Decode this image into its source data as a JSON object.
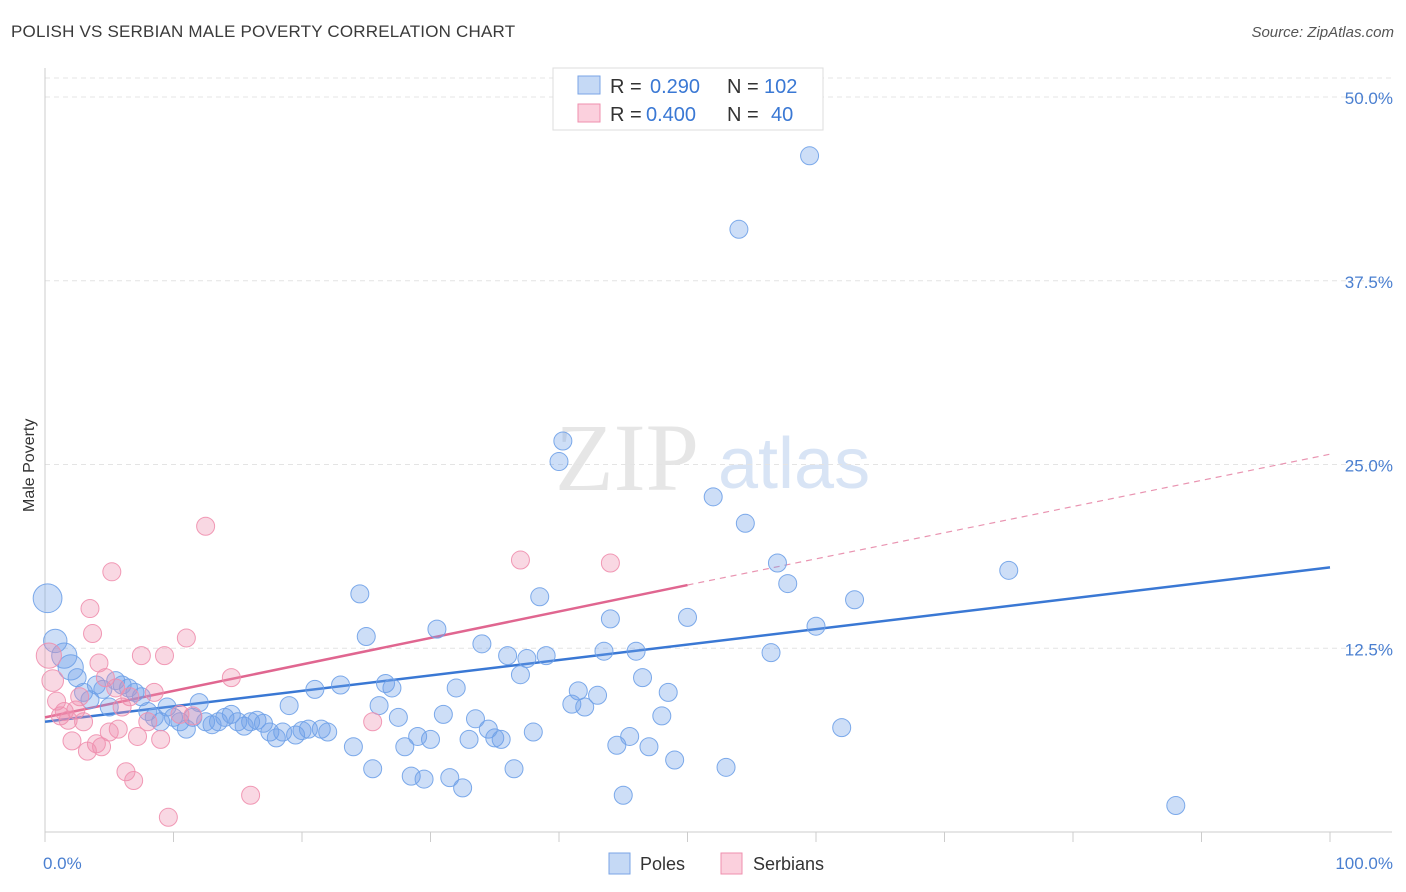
{
  "header": {
    "title": "POLISH VS SERBIAN MALE POVERTY CORRELATION CHART",
    "source": "Source: ZipAtlas.com"
  },
  "watermark": {
    "zip": "ZIP",
    "atlas": "atlas"
  },
  "legend": {
    "r_label": "R =",
    "n_label": "N =",
    "rows": [
      {
        "name": "Poles",
        "r": "0.290",
        "n": "102",
        "color": "#6fa1e8"
      },
      {
        "name": "Serbians",
        "r": "0.400",
        "n": "40",
        "color": "#ef8fae"
      }
    ]
  },
  "chart_data": {
    "type": "scatter",
    "title": "POLISH VS SERBIAN MALE POVERTY CORRELATION CHART",
    "xlabel": "",
    "ylabel": "Male Poverty",
    "xlim": [
      0,
      100
    ],
    "ylim": [
      0,
      50
    ],
    "x_ticks": [
      "0.0%",
      "100.0%"
    ],
    "y_ticks": [
      "12.5%",
      "25.0%",
      "37.5%",
      "50.0%"
    ],
    "y_tick_values": [
      12.5,
      25.0,
      37.5,
      50.0
    ],
    "grid": true,
    "legend_position": "top-center",
    "series": [
      {
        "name": "Poles",
        "color": "#6fa1e8",
        "stroke": "#3a78d4",
        "trend": {
          "x": [
            0,
            100
          ],
          "y": [
            7.5,
            18.0
          ],
          "style": "solid"
        },
        "points": [
          [
            0.2,
            15.9,
            1.6
          ],
          [
            0.8,
            13.0,
            1.3
          ],
          [
            1.5,
            12.0,
            1.4
          ],
          [
            2.0,
            11.2,
            1.4
          ],
          [
            2.5,
            10.5,
            1.0
          ],
          [
            3.0,
            9.5,
            1.0
          ],
          [
            3.5,
            9.0,
            1.0
          ],
          [
            4.0,
            10.0,
            1.0
          ],
          [
            4.5,
            9.7,
            1.0
          ],
          [
            5.0,
            8.5,
            1.0
          ],
          [
            5.5,
            10.3,
            1.0
          ],
          [
            6.0,
            10.0,
            1.0
          ],
          [
            6.5,
            9.8,
            1.0
          ],
          [
            7.0,
            9.5,
            1.0
          ],
          [
            7.5,
            9.2,
            1.0
          ],
          [
            8.0,
            8.2,
            1.0
          ],
          [
            8.5,
            7.8,
            1.0
          ],
          [
            9.0,
            7.5,
            1.0
          ],
          [
            9.5,
            8.5,
            1.0
          ],
          [
            10.0,
            7.8,
            1.0
          ],
          [
            10.5,
            7.5,
            1.0
          ],
          [
            11.0,
            7.0,
            1.0
          ],
          [
            11.5,
            7.8,
            1.0
          ],
          [
            12.0,
            8.8,
            1.0
          ],
          [
            12.5,
            7.5,
            1.0
          ],
          [
            13.0,
            7.3,
            1.0
          ],
          [
            13.5,
            7.5,
            1.0
          ],
          [
            14.0,
            7.8,
            1.0
          ],
          [
            14.5,
            8.0,
            1.0
          ],
          [
            15.0,
            7.5,
            1.0
          ],
          [
            15.5,
            7.2,
            1.0
          ],
          [
            16.0,
            7.5,
            1.0
          ],
          [
            16.5,
            7.6,
            1.0
          ],
          [
            17.0,
            7.4,
            1.0
          ],
          [
            17.5,
            6.8,
            1.0
          ],
          [
            18.0,
            6.4,
            1.0
          ],
          [
            18.5,
            6.8,
            1.0
          ],
          [
            19.0,
            8.6,
            1.0
          ],
          [
            19.5,
            6.6,
            1.0
          ],
          [
            20.0,
            6.9,
            1.0
          ],
          [
            20.5,
            7.0,
            1.0
          ],
          [
            21.0,
            9.7,
            1.0
          ],
          [
            21.5,
            7.0,
            1.0
          ],
          [
            22.0,
            6.8,
            1.0
          ],
          [
            23.0,
            10.0,
            1.0
          ],
          [
            24.0,
            5.8,
            1.0
          ],
          [
            24.5,
            16.2,
            1.0
          ],
          [
            25.0,
            13.3,
            1.0
          ],
          [
            25.5,
            4.3,
            1.0
          ],
          [
            26.0,
            8.6,
            1.0
          ],
          [
            26.5,
            10.1,
            1.0
          ],
          [
            27.0,
            9.8,
            1.0
          ],
          [
            27.5,
            7.8,
            1.0
          ],
          [
            28.0,
            5.8,
            1.0
          ],
          [
            28.5,
            3.8,
            1.0
          ],
          [
            29.0,
            6.5,
            1.0
          ],
          [
            29.5,
            3.6,
            1.0
          ],
          [
            30.0,
            6.3,
            1.0
          ],
          [
            30.5,
            13.8,
            1.0
          ],
          [
            31.0,
            8.0,
            1.0
          ],
          [
            31.5,
            3.7,
            1.0
          ],
          [
            32.0,
            9.8,
            1.0
          ],
          [
            32.5,
            3.0,
            1.0
          ],
          [
            33.0,
            6.3,
            1.0
          ],
          [
            33.5,
            7.7,
            1.0
          ],
          [
            34.0,
            12.8,
            1.0
          ],
          [
            34.5,
            7.0,
            1.0
          ],
          [
            35.0,
            6.4,
            1.0
          ],
          [
            35.5,
            6.3,
            1.0
          ],
          [
            36.0,
            12.0,
            1.0
          ],
          [
            36.5,
            4.3,
            1.0
          ],
          [
            37.0,
            10.7,
            1.0
          ],
          [
            37.5,
            11.8,
            1.0
          ],
          [
            38.0,
            6.8,
            1.0
          ],
          [
            38.5,
            16.0,
            1.0
          ],
          [
            39.0,
            12.0,
            1.0
          ],
          [
            40.0,
            25.2,
            1.0
          ],
          [
            40.3,
            26.6,
            1.0
          ],
          [
            41.0,
            8.7,
            1.0
          ],
          [
            41.5,
            9.6,
            1.0
          ],
          [
            42.0,
            8.5,
            1.0
          ],
          [
            43.0,
            9.3,
            1.0
          ],
          [
            43.5,
            12.3,
            1.0
          ],
          [
            44.0,
            14.5,
            1.0
          ],
          [
            44.5,
            5.9,
            1.0
          ],
          [
            45.0,
            2.5,
            1.0
          ],
          [
            45.5,
            6.5,
            1.0
          ],
          [
            46.0,
            12.3,
            1.0
          ],
          [
            46.5,
            10.5,
            1.0
          ],
          [
            47.0,
            5.8,
            1.0
          ],
          [
            48.0,
            7.9,
            1.0
          ],
          [
            48.5,
            9.5,
            1.0
          ],
          [
            49.0,
            4.9,
            1.0
          ],
          [
            50.0,
            14.6,
            1.0
          ],
          [
            52.0,
            22.8,
            1.0
          ],
          [
            53.0,
            4.4,
            1.0
          ],
          [
            54.0,
            41.0,
            1.0
          ],
          [
            54.5,
            21.0,
            1.0
          ],
          [
            56.5,
            12.2,
            1.0
          ],
          [
            57.0,
            18.3,
            1.0
          ],
          [
            57.8,
            16.9,
            1.0
          ],
          [
            59.5,
            46.0,
            1.0
          ],
          [
            60.0,
            14.0,
            1.0
          ],
          [
            62.0,
            7.1,
            1.0
          ],
          [
            63.0,
            15.8,
            1.0
          ],
          [
            75.0,
            17.8,
            1.0
          ],
          [
            88.0,
            1.8,
            1.0
          ]
        ]
      },
      {
        "name": "Serbians",
        "color": "#ef8fae",
        "stroke": "#e06690",
        "trend": {
          "x": [
            0,
            50
          ],
          "y": [
            7.8,
            16.8
          ],
          "style": "solid",
          "dashed_to": [
            100,
            25.7
          ]
        },
        "points": [
          [
            0.3,
            12.0,
            1.4
          ],
          [
            0.6,
            10.3,
            1.2
          ],
          [
            0.9,
            8.9,
            1.0
          ],
          [
            1.2,
            7.9,
            1.0
          ],
          [
            1.5,
            8.2,
            1.0
          ],
          [
            1.8,
            7.6,
            1.0
          ],
          [
            2.1,
            6.2,
            1.0
          ],
          [
            2.4,
            8.3,
            1.0
          ],
          [
            2.7,
            9.2,
            1.0
          ],
          [
            3.0,
            7.5,
            1.0
          ],
          [
            3.3,
            5.5,
            1.0
          ],
          [
            3.5,
            15.2,
            1.0
          ],
          [
            3.7,
            13.5,
            1.0
          ],
          [
            4.0,
            6.0,
            1.0
          ],
          [
            4.2,
            11.5,
            1.0
          ],
          [
            4.4,
            5.8,
            1.0
          ],
          [
            4.7,
            10.5,
            1.0
          ],
          [
            5.0,
            6.8,
            1.0
          ],
          [
            5.2,
            17.7,
            1.0
          ],
          [
            5.5,
            9.8,
            1.0
          ],
          [
            5.7,
            7.0,
            1.0
          ],
          [
            6.0,
            8.5,
            1.0
          ],
          [
            6.3,
            4.1,
            1.0
          ],
          [
            6.6,
            9.2,
            1.0
          ],
          [
            6.9,
            3.5,
            1.0
          ],
          [
            7.2,
            6.5,
            1.0
          ],
          [
            7.5,
            12.0,
            1.0
          ],
          [
            8.0,
            7.5,
            1.0
          ],
          [
            8.5,
            9.5,
            1.0
          ],
          [
            9.0,
            6.3,
            1.0
          ],
          [
            9.3,
            12.0,
            1.0
          ],
          [
            9.6,
            1.0,
            1.0
          ],
          [
            10.5,
            8.0,
            1.0
          ],
          [
            11.0,
            13.2,
            1.0
          ],
          [
            11.5,
            7.9,
            1.0
          ],
          [
            12.5,
            20.8,
            1.0
          ],
          [
            14.5,
            10.5,
            1.0
          ],
          [
            16.0,
            2.5,
            1.0
          ],
          [
            25.5,
            7.5,
            1.0
          ],
          [
            37.0,
            18.5,
            1.0
          ],
          [
            44.0,
            18.3,
            1.0
          ]
        ]
      }
    ]
  }
}
